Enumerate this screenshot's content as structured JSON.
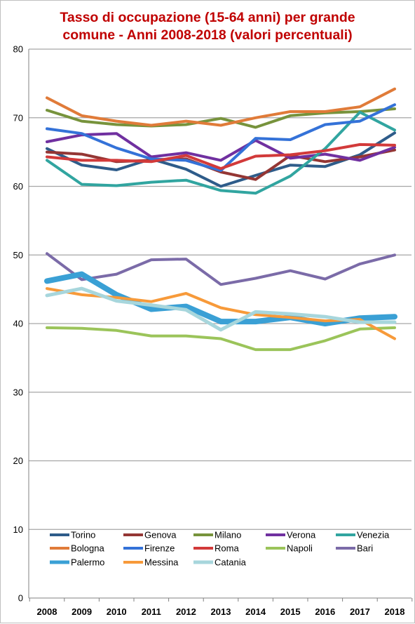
{
  "chart_data": {
    "type": "line",
    "title": "Tasso di occupazione  (15-64 anni) per grande comune - Anni 2008-2018 (valori percentuali)",
    "title_lines": [
      "Tasso di occupazione  (15-64 anni) per grande",
      "comune - Anni 2008-2018 (valori percentuali)"
    ],
    "x": [
      "2008",
      "2009",
      "2010",
      "2011",
      "2012",
      "2013",
      "2014",
      "2015",
      "2016",
      "2017",
      "2018"
    ],
    "ylim": [
      0,
      80
    ],
    "yticks": [
      "0",
      "10",
      "20",
      "30",
      "40",
      "50",
      "60",
      "70",
      "80"
    ],
    "grid": true,
    "legend_position": "bottom-inside",
    "series": [
      {
        "name": "Torino",
        "color": "#2e5c8a",
        "width": 4,
        "values": [
          65.5,
          63.1,
          62.4,
          64.0,
          62.5,
          60.0,
          61.6,
          63.1,
          62.9,
          64.6,
          67.8
        ]
      },
      {
        "name": "Genova",
        "color": "#943634",
        "width": 4,
        "values": [
          65.0,
          64.7,
          63.6,
          63.8,
          64.0,
          62.1,
          61.0,
          64.5,
          63.6,
          64.3,
          65.3
        ]
      },
      {
        "name": "Milano",
        "color": "#77933c",
        "width": 4,
        "values": [
          71.1,
          69.5,
          69.0,
          68.8,
          69.0,
          69.9,
          68.6,
          70.3,
          70.7,
          70.9,
          71.3
        ]
      },
      {
        "name": "Verona",
        "color": "#7030a0",
        "width": 4,
        "values": [
          66.5,
          67.5,
          67.7,
          64.3,
          64.9,
          63.8,
          66.7,
          64.1,
          64.7,
          63.8,
          65.7
        ]
      },
      {
        "name": "Venezia",
        "color": "#31a5a0",
        "width": 4,
        "values": [
          63.8,
          60.3,
          60.1,
          60.6,
          60.9,
          59.4,
          59.0,
          61.5,
          65.5,
          70.8,
          68.2
        ]
      },
      {
        "name": "Bologna",
        "color": "#e07b39",
        "width": 4,
        "values": [
          72.9,
          70.3,
          69.5,
          68.9,
          69.5,
          68.9,
          70.0,
          70.9,
          70.9,
          71.6,
          74.2
        ]
      },
      {
        "name": "Firenze",
        "color": "#3472d8",
        "width": 4,
        "values": [
          68.4,
          67.7,
          65.6,
          64.0,
          63.8,
          62.3,
          67.0,
          66.8,
          69.0,
          69.5,
          71.9
        ]
      },
      {
        "name": "Roma",
        "color": "#d23a3a",
        "width": 4,
        "values": [
          64.3,
          63.8,
          63.8,
          63.6,
          64.5,
          62.6,
          64.4,
          64.6,
          65.2,
          66.1,
          66.0
        ]
      },
      {
        "name": "Napoli",
        "color": "#9bc45a",
        "width": 4,
        "values": [
          39.4,
          39.3,
          39.0,
          38.2,
          38.2,
          37.8,
          36.2,
          36.2,
          37.5,
          39.2,
          39.4
        ]
      },
      {
        "name": "Bari",
        "color": "#7b6ba8",
        "width": 4,
        "values": [
          50.2,
          46.4,
          47.2,
          49.3,
          49.4,
          45.7,
          46.6,
          47.7,
          46.5,
          48.7,
          50.0
        ]
      },
      {
        "name": "Palermo",
        "color": "#3aa0d5",
        "width": 8,
        "values": [
          46.2,
          47.2,
          44.2,
          42.1,
          42.5,
          40.3,
          40.3,
          40.9,
          40.0,
          40.8,
          41.0
        ]
      },
      {
        "name": "Messina",
        "color": "#f79a3a",
        "width": 4,
        "values": [
          45.1,
          44.2,
          43.8,
          43.2,
          44.4,
          42.3,
          41.3,
          40.9,
          40.4,
          40.6,
          37.8
        ]
      },
      {
        "name": "Catania",
        "color": "#a7d6dc",
        "width": 5,
        "values": [
          44.1,
          45.1,
          43.3,
          42.7,
          42.0,
          39.1,
          41.7,
          41.4,
          41.0,
          40.2,
          40.2
        ]
      }
    ]
  }
}
